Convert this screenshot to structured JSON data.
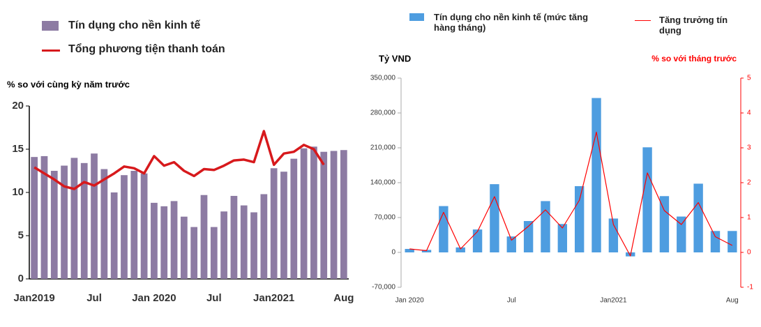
{
  "chart_data": [
    {
      "type": "combo",
      "y_label": "% so với cùng kỳ năm trước",
      "categories": [
        "Jan2019",
        null,
        null,
        null,
        null,
        null,
        "Jul",
        null,
        null,
        null,
        null,
        null,
        "Jan 2020",
        null,
        null,
        null,
        null,
        null,
        "Jul",
        null,
        null,
        null,
        null,
        null,
        "Jan2021",
        null,
        null,
        null,
        null,
        null,
        null,
        "Aug"
      ],
      "series": [
        {
          "name": "Tín dụng cho nền kinh tế",
          "type": "bar",
          "color": "#8d7ba3",
          "values": [
            14.1,
            14.2,
            12.5,
            13.1,
            14.0,
            13.4,
            14.5,
            12.7,
            10.0,
            12.0,
            12.5,
            12.2,
            8.8,
            8.4,
            9.0,
            7.2,
            6.0,
            9.7,
            6.0,
            7.8,
            9.6,
            8.5,
            7.7,
            9.8,
            12.8,
            12.4,
            13.9,
            15.1,
            15.3,
            14.7,
            14.8,
            14.9
          ]
        },
        {
          "name": "Tổng phương tiện thanh toán",
          "type": "line",
          "color": "#d7191c",
          "values": [
            12.9,
            12.2,
            11.5,
            10.7,
            10.4,
            11.2,
            10.8,
            11.5,
            12.2,
            13.0,
            12.8,
            12.2,
            14.2,
            13.1,
            13.5,
            12.5,
            11.9,
            12.7,
            12.6,
            13.1,
            13.7,
            13.8,
            13.5,
            17.1,
            13.2,
            14.5,
            14.7,
            15.5,
            15.0,
            13.2,
            null,
            null
          ]
        }
      ],
      "ylim": [
        0,
        20
      ],
      "yticks": [
        0,
        5,
        10,
        15,
        20
      ]
    },
    {
      "type": "combo",
      "y_label": "Tỷ VND",
      "y2_label": "% so với tháng trước",
      "categories": [
        "Jan 2020",
        null,
        null,
        null,
        null,
        null,
        "Jul",
        null,
        null,
        null,
        null,
        null,
        "Jan2021",
        null,
        null,
        null,
        null,
        null,
        null,
        "Aug"
      ],
      "series": [
        {
          "name": "Tín dụng cho nền kinh tế (mức tăng hàng tháng)",
          "type": "bar",
          "color": "#4e9de0",
          "values": [
            7000,
            5000,
            93000,
            10000,
            46000,
            137000,
            32000,
            63000,
            103000,
            57000,
            133000,
            310000,
            68000,
            -8000,
            211000,
            113000,
            72000,
            138000,
            43000,
            43000
          ]
        },
        {
          "name": "Tăng trưởng tín dụng",
          "type": "line",
          "color": "#ff0000",
          "axis": "y2",
          "values": [
            0.1,
            0.05,
            1.15,
            0.1,
            0.6,
            1.6,
            0.35,
            0.75,
            1.22,
            0.7,
            1.5,
            3.45,
            0.8,
            -0.1,
            2.28,
            1.2,
            0.8,
            1.43,
            0.45,
            0.2
          ]
        }
      ],
      "ylim": [
        -70000,
        350000
      ],
      "yticks": [
        {
          "value": -70000,
          "label": "-70,000"
        },
        0,
        {
          "value": 70000,
          "label": "70,000"
        },
        {
          "value": 140000,
          "label": "140,000"
        },
        {
          "value": 210000,
          "label": "210,000"
        },
        {
          "value": 280000,
          "label": "280,000"
        },
        {
          "value": 350000,
          "label": "350,000"
        }
      ],
      "y2lim": [
        -1,
        5
      ],
      "y2ticks": [
        -1,
        0,
        1,
        2,
        3,
        4,
        5
      ]
    }
  ]
}
